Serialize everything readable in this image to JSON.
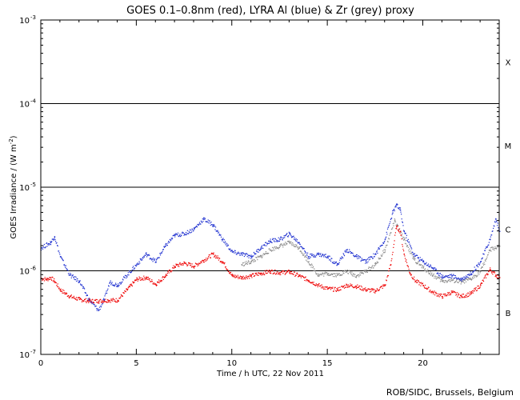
{
  "chart_data": {
    "type": "scatter",
    "title": "GOES 0.1–0.8nm (red), LYRA Al (blue) & Zr (grey) proxy",
    "xlabel": "Time / h UTC, 22 Nov 2011",
    "ylabel": "GOES Irradiance / (W m",
    "ylabel_superscript": "-2",
    "ylabel_close": ")",
    "xlim": [
      0,
      24
    ],
    "ylim": [
      1e-07,
      0.001
    ],
    "yscale": "log",
    "x_ticks": [
      {
        "value": 0,
        "label": "0"
      },
      {
        "value": 5,
        "label": "5"
      },
      {
        "value": 10,
        "label": "10"
      },
      {
        "value": 15,
        "label": "15"
      },
      {
        "value": 20,
        "label": "20"
      }
    ],
    "y_ticks": [
      {
        "exp": -7,
        "base": "10",
        "sup": "-7"
      },
      {
        "exp": -6,
        "base": "10",
        "sup": "-6"
      },
      {
        "exp": -5,
        "base": "10",
        "sup": "-5"
      },
      {
        "exp": -4,
        "base": "10",
        "sup": "-4"
      },
      {
        "exp": -3,
        "base": "10",
        "sup": "-3"
      }
    ],
    "flare_classes": [
      {
        "label": "B",
        "exp": -6.5
      },
      {
        "label": "C",
        "exp": -5.5
      },
      {
        "label": "M",
        "exp": -4.5
      },
      {
        "label": "X",
        "exp": -3.5
      }
    ],
    "threshold_lines": [
      1e-06,
      1e-05,
      0.0001
    ],
    "series": [
      {
        "name": "GOES 0.1–0.8nm",
        "color": "#ee0000",
        "points": [
          [
            0.0,
            8.2e-07
          ],
          [
            0.3,
            8e-07
          ],
          [
            0.5,
            8.4e-07
          ],
          [
            0.7,
            7.6e-07
          ],
          [
            1.0,
            6e-07
          ],
          [
            1.5,
            5e-07
          ],
          [
            2.0,
            4.6e-07
          ],
          [
            2.5,
            4.4e-07
          ],
          [
            3.0,
            4.4e-07
          ],
          [
            3.5,
            4.5e-07
          ],
          [
            4.0,
            4.5e-07
          ],
          [
            4.5,
            6e-07
          ],
          [
            5.0,
            8e-07
          ],
          [
            5.5,
            8.4e-07
          ],
          [
            6.0,
            7e-07
          ],
          [
            6.5,
            8.8e-07
          ],
          [
            7.0,
            1.15e-06
          ],
          [
            7.5,
            1.25e-06
          ],
          [
            8.0,
            1.15e-06
          ],
          [
            8.5,
            1.35e-06
          ],
          [
            9.0,
            1.6e-06
          ],
          [
            9.5,
            1.3e-06
          ],
          [
            10.0,
            8.8e-07
          ],
          [
            10.5,
            8.4e-07
          ],
          [
            11.0,
            8.8e-07
          ],
          [
            11.5,
            9.4e-07
          ],
          [
            12.0,
            1e-06
          ],
          [
            12.5,
            9.6e-07
          ],
          [
            13.0,
            9.8e-07
          ],
          [
            13.5,
            8.8e-07
          ],
          [
            14.0,
            7.8e-07
          ],
          [
            14.5,
            6.8e-07
          ],
          [
            15.0,
            6.2e-07
          ],
          [
            15.5,
            6e-07
          ],
          [
            16.0,
            6.8e-07
          ],
          [
            16.5,
            6.6e-07
          ],
          [
            17.0,
            6e-07
          ],
          [
            17.5,
            5.8e-07
          ],
          [
            18.0,
            6.8e-07
          ],
          [
            18.3,
            1.2e-06
          ],
          [
            18.6,
            3.4e-06
          ],
          [
            18.8,
            3e-06
          ],
          [
            19.0,
            1.6e-06
          ],
          [
            19.3,
            9.6e-07
          ],
          [
            19.6,
            7.6e-07
          ],
          [
            20.0,
            6.8e-07
          ],
          [
            20.5,
            5.6e-07
          ],
          [
            21.0,
            5e-07
          ],
          [
            21.5,
            5.6e-07
          ],
          [
            22.0,
            5e-07
          ],
          [
            22.5,
            5.4e-07
          ],
          [
            23.0,
            6.8e-07
          ],
          [
            23.5,
            1.05e-06
          ],
          [
            23.8,
            9e-07
          ],
          [
            24.0,
            8.4e-07
          ]
        ]
      },
      {
        "name": "LYRA Al proxy",
        "color": "#1d2fcf",
        "points": [
          [
            0.0,
            1.9e-06
          ],
          [
            0.5,
            2.2e-06
          ],
          [
            0.7,
            2.6e-06
          ],
          [
            1.0,
            1.5e-06
          ],
          [
            1.5,
            9e-07
          ],
          [
            2.0,
            7.6e-07
          ],
          [
            2.5,
            4.6e-07
          ],
          [
            3.0,
            3.4e-07
          ],
          [
            3.3,
            4.6e-07
          ],
          [
            3.6,
            7.4e-07
          ],
          [
            4.0,
            6.8e-07
          ],
          [
            5.0,
            1.2e-06
          ],
          [
            5.5,
            1.6e-06
          ],
          [
            6.0,
            1.3e-06
          ],
          [
            6.5,
            2e-06
          ],
          [
            7.0,
            2.7e-06
          ],
          [
            7.5,
            2.8e-06
          ],
          [
            8.0,
            3.2e-06
          ],
          [
            8.5,
            4.2e-06
          ],
          [
            9.0,
            3.6e-06
          ],
          [
            9.5,
            2.4e-06
          ],
          [
            10.0,
            1.7e-06
          ],
          [
            10.5,
            1.6e-06
          ],
          [
            11.0,
            1.5e-06
          ],
          [
            11.5,
            1.9e-06
          ],
          [
            12.0,
            2.3e-06
          ],
          [
            12.5,
            2.4e-06
          ],
          [
            13.0,
            2.8e-06
          ],
          [
            13.5,
            2.2e-06
          ],
          [
            14.0,
            1.5e-06
          ],
          [
            14.5,
            1.6e-06
          ],
          [
            15.0,
            1.5e-06
          ],
          [
            15.5,
            1.2e-06
          ],
          [
            16.0,
            1.8e-06
          ],
          [
            16.5,
            1.5e-06
          ],
          [
            17.0,
            1.3e-06
          ],
          [
            17.5,
            1.6e-06
          ],
          [
            18.0,
            2.4e-06
          ],
          [
            18.4,
            5e-06
          ],
          [
            18.6,
            6.2e-06
          ],
          [
            18.8,
            5.4e-06
          ],
          [
            19.0,
            3e-06
          ],
          [
            19.5,
            1.6e-06
          ],
          [
            20.0,
            1.3e-06
          ],
          [
            20.5,
            1.1e-06
          ],
          [
            21.0,
            8.6e-07
          ],
          [
            21.5,
            8.8e-07
          ],
          [
            22.0,
            8e-07
          ],
          [
            22.5,
            9.4e-07
          ],
          [
            23.0,
            1.3e-06
          ],
          [
            23.5,
            2.4e-06
          ],
          [
            23.8,
            4.2e-06
          ],
          [
            24.0,
            3e-06
          ]
        ]
      },
      {
        "name": "LYRA Zr proxy",
        "color": "#8a8a8a",
        "points": [
          [
            10.5,
            1.2e-06
          ],
          [
            11.0,
            1.3e-06
          ],
          [
            11.5,
            1.5e-06
          ],
          [
            12.0,
            1.8e-06
          ],
          [
            12.5,
            2e-06
          ],
          [
            13.0,
            2.2e-06
          ],
          [
            13.5,
            1.9e-06
          ],
          [
            14.0,
            1.3e-06
          ],
          [
            14.5,
            9e-07
          ],
          [
            15.0,
            9.4e-07
          ],
          [
            15.5,
            9e-07
          ],
          [
            16.0,
            1e-06
          ],
          [
            16.5,
            8.8e-07
          ],
          [
            17.0,
            1e-06
          ],
          [
            17.5,
            1.2e-06
          ],
          [
            18.0,
            1.8e-06
          ],
          [
            18.5,
            4e-06
          ],
          [
            19.0,
            2.4e-06
          ],
          [
            19.5,
            1.4e-06
          ],
          [
            20.0,
            1.1e-06
          ],
          [
            20.5,
            9e-07
          ],
          [
            21.0,
            7.6e-07
          ],
          [
            21.5,
            7.8e-07
          ],
          [
            22.0,
            7.4e-07
          ],
          [
            22.5,
            8e-07
          ],
          [
            23.0,
            1e-06
          ],
          [
            23.5,
            1.8e-06
          ],
          [
            24.0,
            2e-06
          ]
        ]
      }
    ],
    "grid": false,
    "legend": "none"
  },
  "credit": "ROB/SIDC, Brussels, Belgium"
}
